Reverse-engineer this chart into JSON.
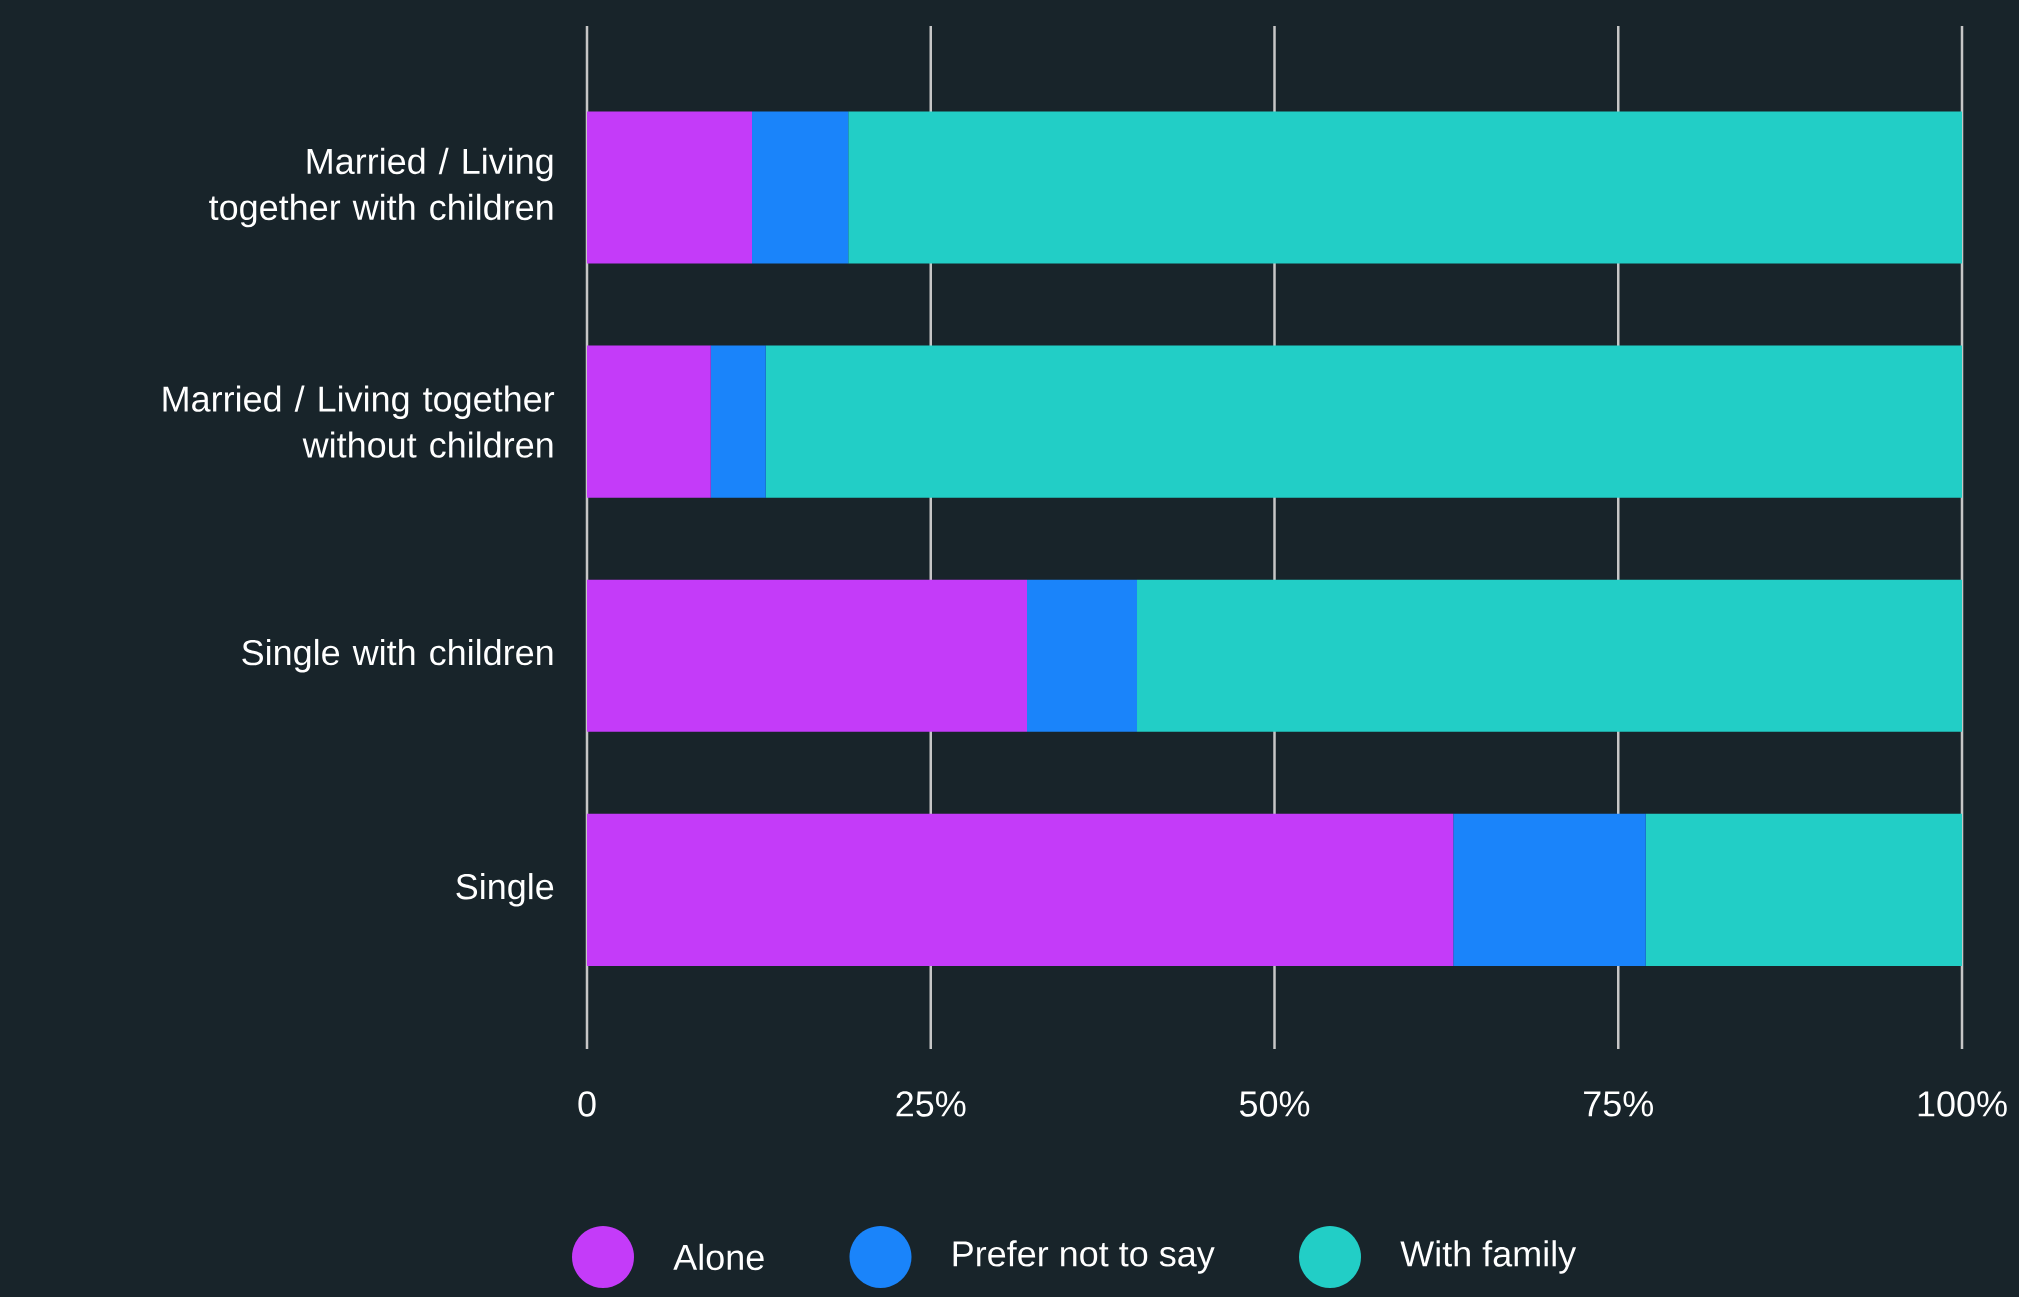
{
  "chart_data": {
    "type": "bar",
    "orientation": "horizontal",
    "stacked": true,
    "categories": [
      "Married / Living together with children",
      "Married / Living together without children",
      "Single with children",
      "Single"
    ],
    "series": [
      {
        "name": "Alone",
        "color": "#c43bf9",
        "values": [
          12,
          9,
          32,
          63
        ]
      },
      {
        "name": "Prefer not to say",
        "color": "#1a84fa",
        "values": [
          7,
          4,
          8,
          14
        ]
      },
      {
        "name": "With family",
        "color": "#22cec6",
        "values": [
          81,
          87,
          60,
          23
        ]
      }
    ],
    "xlim": [
      0,
      100
    ],
    "xticks": [
      0,
      {
        "value": 25,
        "label": "25%"
      },
      {
        "value": 50,
        "label": "50%"
      },
      {
        "value": 75,
        "label": "75%"
      },
      {
        "value": 100,
        "label": "100%"
      }
    ],
    "grid": "x",
    "legend": "bottom"
  }
}
